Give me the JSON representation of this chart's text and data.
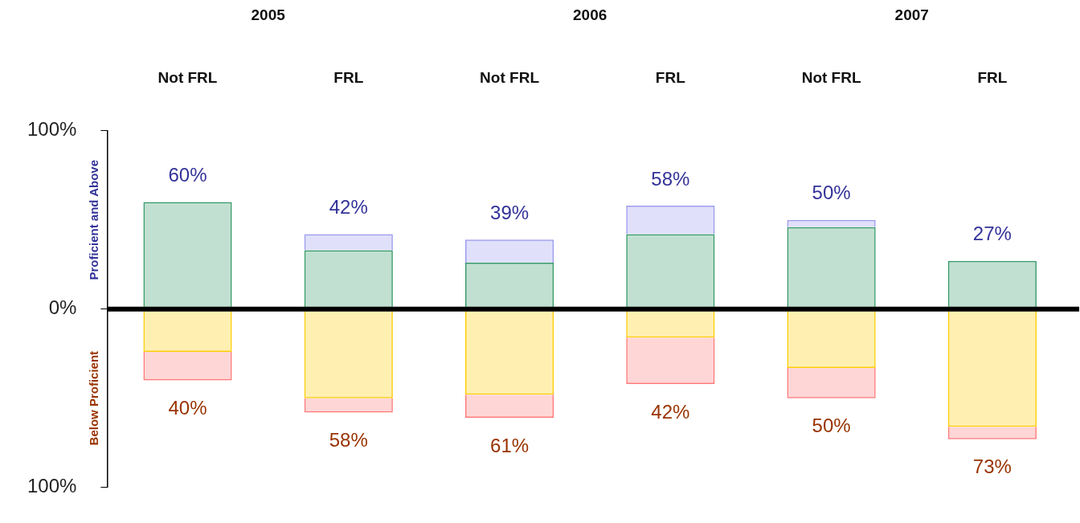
{
  "chart_data": {
    "type": "bar",
    "stacked": true,
    "ylabel": "Proficient and Above",
    "categories": [
      "Not FRL",
      "FRL",
      "Not FRL",
      "FRL",
      "Not FRL",
      "FRL"
    ],
    "series": [
      {
        "color": "#339966",
        "values": [
          60,
          33,
          26,
          42,
          46,
          27
        ]
      },
      {
        "color": "#9999ee",
        "values": [
          0,
          9,
          13,
          16,
          4,
          0
        ]
      },
      {
        "color": "#ffcc00",
        "values": [
          -24,
          -50,
          -48,
          -16,
          -33,
          -66
        ]
      },
      {
        "color": "#ff7777",
        "values": [
          -16,
          -8,
          -13,
          -26,
          -17,
          -7
        ]
      }
    ],
    "totals": [
      [
        "60%",
        "42%",
        "39%",
        "58%",
        "50%",
        "27%"
      ],
      [
        "40%",
        "58%",
        "61%",
        "42%",
        "50%",
        "73%"
      ]
    ],
    "ylim": [
      -100,
      100
    ],
    "yticks": [
      {
        "value": -100,
        "label": "100%"
      },
      {
        "value": 0,
        "label": "0%"
      },
      {
        "value": 100,
        "label": "100%"
      }
    ],
    "ref_lines": [
      {
        "axis": "y",
        "value": 0,
        "color": "#000000"
      }
    ],
    "annotations": [
      "2005",
      "2006",
      "2007",
      "Below Proficient"
    ],
    "grid": false,
    "legend": false
  }
}
